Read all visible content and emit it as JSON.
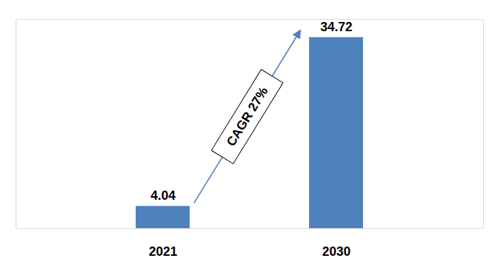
{
  "chart_data": {
    "type": "bar",
    "categories": [
      "2021",
      "2030"
    ],
    "values": [
      4.04,
      34.72
    ],
    "color": "#4f81bd",
    "ylim": [
      0,
      38
    ],
    "data_labels": true,
    "tick_labels": "x",
    "grid": false,
    "annotation": "CAGR 27%"
  }
}
